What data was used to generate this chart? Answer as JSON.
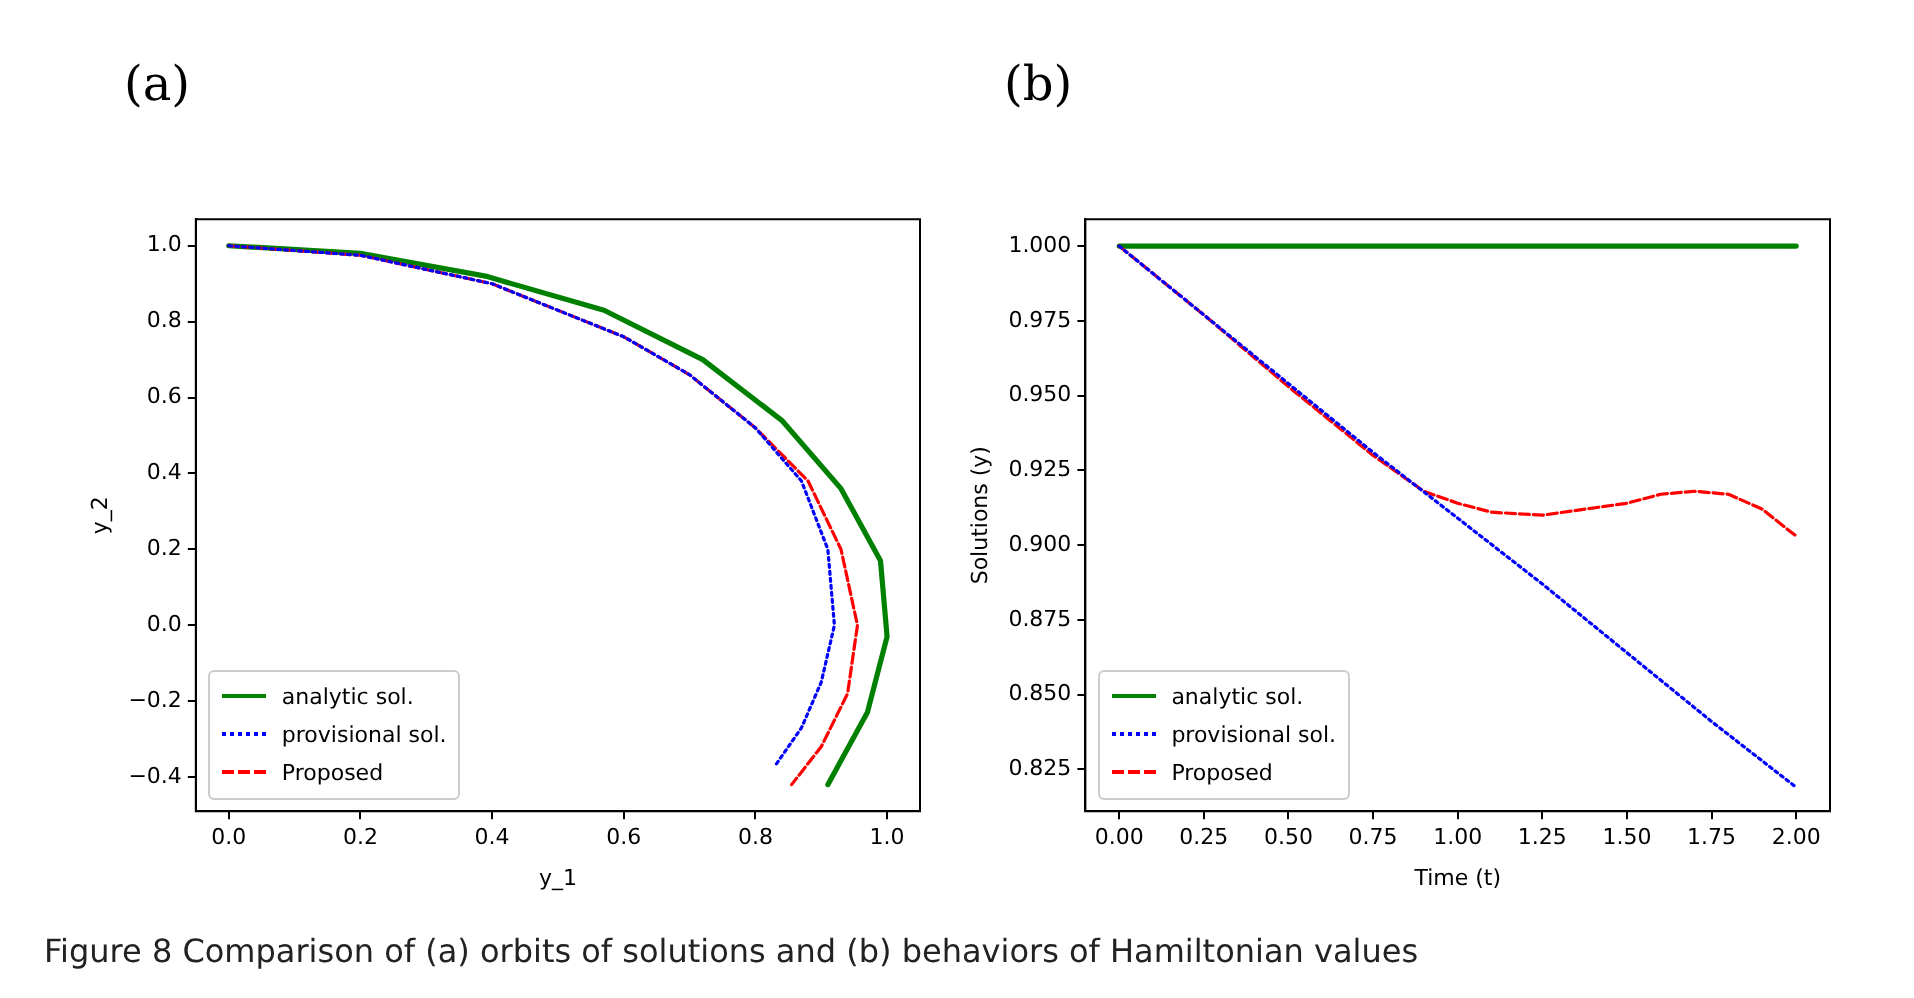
{
  "chart_data": [
    {
      "type": "line",
      "title": "(a)",
      "xlabel": "y_1",
      "ylabel": "y_2",
      "xlim": [
        -0.05,
        1.05
      ],
      "ylim": [
        -0.49,
        1.07
      ],
      "xticks": [
        {
          "value": 0,
          "label": "0.0"
        },
        {
          "value": 0.2,
          "label": "0.2"
        },
        {
          "value": 0.4,
          "label": "0.4"
        },
        {
          "value": 0.6,
          "label": "0.6"
        },
        {
          "value": 0.8,
          "label": "0.8"
        },
        {
          "value": 1,
          "label": "1.0"
        }
      ],
      "yticks": [
        {
          "value": -0.4,
          "label": "−0.4"
        },
        {
          "value": -0.2,
          "label": "−0.2"
        },
        {
          "value": 0,
          "label": "0.0"
        },
        {
          "value": 0.2,
          "label": "0.2"
        },
        {
          "value": 0.4,
          "label": "0.4"
        },
        {
          "value": 0.6,
          "label": "0.6"
        },
        {
          "value": 0.8,
          "label": "0.8"
        },
        {
          "value": 1,
          "label": "1.0"
        }
      ],
      "grid": false,
      "legend": "bottom left",
      "marker": "none",
      "annotations": [
        "Figure 8  Comparison of (a) orbits of solutions and (b) behaviors of Hamiltonian values"
      ],
      "series": [
        {
          "name": "analytic sol.",
          "color": "#008000",
          "line_style": "solid",
          "x": [
            0,
            0.2,
            0.39,
            0.57,
            0.72,
            0.84,
            0.93,
            0.99,
            1.0,
            0.97,
            0.91
          ],
          "values": [
            1,
            0.98,
            0.92,
            0.83,
            0.7,
            0.54,
            0.36,
            0.17,
            -0.03,
            -0.23,
            -0.42
          ]
        },
        {
          "name": "provisional sol.",
          "color": "#0000ff",
          "line_style": "dotted",
          "x": [
            0,
            0.2,
            0.4,
            0.6,
            0.7,
            0.8,
            0.87,
            0.91,
            0.92,
            0.9,
            0.87,
            0.83
          ],
          "values": [
            1,
            0.975,
            0.9,
            0.76,
            0.66,
            0.52,
            0.38,
            0.2,
            0,
            -0.15,
            -0.27,
            -0.37
          ]
        },
        {
          "name": "Proposed",
          "color": "#ff0000",
          "line_style": "dashed",
          "x": [
            0,
            0.2,
            0.4,
            0.6,
            0.7,
            0.8,
            0.88,
            0.93,
            0.955,
            0.94,
            0.9,
            0.855
          ],
          "values": [
            1,
            0.975,
            0.9,
            0.76,
            0.66,
            0.52,
            0.38,
            0.2,
            0,
            -0.18,
            -0.32,
            -0.42
          ]
        }
      ]
    },
    {
      "type": "line",
      "title": "(b)",
      "xlabel": "Time (t)",
      "ylabel": "Solutions (y)",
      "xlim": [
        -0.1,
        2.1
      ],
      "ylim": [
        0.811,
        1.009
      ],
      "xticks": [
        {
          "value": 0,
          "label": "0.00"
        },
        {
          "value": 0.25,
          "label": "0.25"
        },
        {
          "value": 0.5,
          "label": "0.50"
        },
        {
          "value": 0.75,
          "label": "0.75"
        },
        {
          "value": 1,
          "label": "1.00"
        },
        {
          "value": 1.25,
          "label": "1.25"
        },
        {
          "value": 1.5,
          "label": "1.50"
        },
        {
          "value": 1.75,
          "label": "1.75"
        },
        {
          "value": 2,
          "label": "2.00"
        }
      ],
      "yticks": [
        {
          "value": 0.825,
          "label": "0.825"
        },
        {
          "value": 0.85,
          "label": "0.850"
        },
        {
          "value": 0.875,
          "label": "0.875"
        },
        {
          "value": 0.9,
          "label": "0.900"
        },
        {
          "value": 0.925,
          "label": "0.925"
        },
        {
          "value": 0.95,
          "label": "0.950"
        },
        {
          "value": 0.975,
          "label": "0.975"
        },
        {
          "value": 1,
          "label": "1.000"
        }
      ],
      "grid": false,
      "legend": "bottom left",
      "marker": "none",
      "series": [
        {
          "name": "analytic sol.",
          "color": "#008000",
          "line_style": "solid",
          "x": [
            0,
            2
          ],
          "values": [
            1,
            1
          ]
        },
        {
          "name": "provisional sol.",
          "color": "#0000ff",
          "line_style": "dotted",
          "x": [
            0,
            0.25,
            0.5,
            0.75,
            1,
            1.25,
            1.5,
            1.75,
            2
          ],
          "values": [
            1,
            0.977,
            0.954,
            0.931,
            0.909,
            0.887,
            0.864,
            0.841,
            0.819
          ]
        },
        {
          "name": "Proposed",
          "color": "#ff0000",
          "line_style": "dashed",
          "x": [
            0,
            0.25,
            0.5,
            0.75,
            0.9,
            1,
            1.1,
            1.25,
            1.5,
            1.6,
            1.7,
            1.8,
            1.9,
            2
          ],
          "values": [
            1,
            0.977,
            0.953,
            0.93,
            0.918,
            0.914,
            0.911,
            0.91,
            0.914,
            0.917,
            0.918,
            0.917,
            0.912,
            0.903
          ]
        }
      ]
    }
  ]
}
